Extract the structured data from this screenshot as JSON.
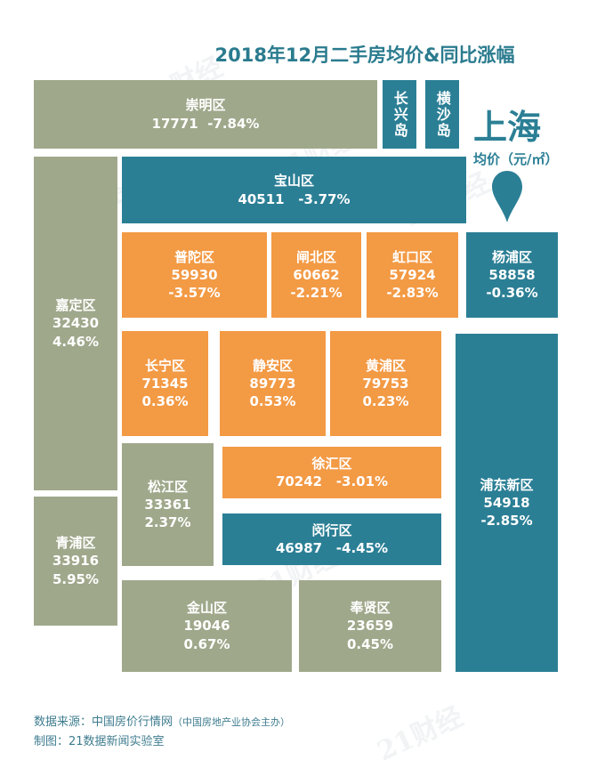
{
  "title": "2018年12月二手房均价&同比涨幅",
  "city": "上海",
  "unit": "均价（元/㎡）",
  "colors": {
    "gray": "#9fa88b",
    "teal": "#2b7f95",
    "orange": "#f39a45",
    "title": "#2a7b8e"
  },
  "districts": {
    "chongming": {
      "name": "崇明区",
      "price": "17771",
      "change": "-7.84%"
    },
    "changxing": {
      "name": "长兴岛"
    },
    "hengsha": {
      "name": "横沙岛"
    },
    "baoshan": {
      "name": "宝山区",
      "price": "40511",
      "change": "-3.77%"
    },
    "jiading": {
      "name": "嘉定区",
      "price": "32430",
      "change": "4.46%"
    },
    "putuo": {
      "name": "普陀区",
      "price": "59930",
      "change": "-3.57%"
    },
    "zhabei": {
      "name": "闸北区",
      "price": "60662",
      "change": "-2.21%"
    },
    "hongkou": {
      "name": "虹口区",
      "price": "57924",
      "change": "-2.83%"
    },
    "yangpu": {
      "name": "杨浦区",
      "price": "58858",
      "change": "-0.36%"
    },
    "changning": {
      "name": "长宁区",
      "price": "71345",
      "change": "0.36%"
    },
    "jingan": {
      "name": "静安区",
      "price": "89773",
      "change": "0.53%"
    },
    "huangpu": {
      "name": "黄浦区",
      "price": "79753",
      "change": "0.23%"
    },
    "pudong": {
      "name": "浦东新区",
      "price": "54918",
      "change": "-2.85%"
    },
    "songjiang": {
      "name": "松江区",
      "price": "33361",
      "change": "2.37%"
    },
    "xuhui": {
      "name": "徐汇区",
      "price": "70242",
      "change": "-3.01%"
    },
    "minhang": {
      "name": "闵行区",
      "price": "46987",
      "change": "-4.45%"
    },
    "qingpu": {
      "name": "青浦区",
      "price": "33916",
      "change": "5.95%"
    },
    "jinshan": {
      "name": "金山区",
      "price": "19046",
      "change": "0.67%"
    },
    "fengxian": {
      "name": "奉贤区",
      "price": "23659",
      "change": "0.45%"
    }
  },
  "watermark": "21财经",
  "footer": {
    "source_label": "数据来源：中国房价行情网",
    "source_note": "（中国房地产业协会主办）",
    "credit": "制图：21数据新闻实验室"
  }
}
